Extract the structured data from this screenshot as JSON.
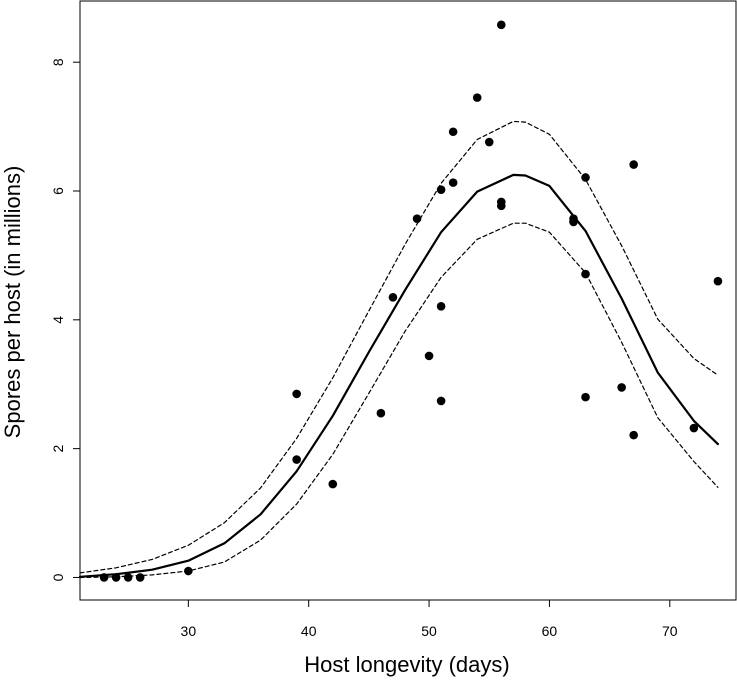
{
  "chart_data": {
    "type": "scatter",
    "title": "",
    "xlabel": "Host longevity (days)",
    "ylabel": "Spores per host (in millions)",
    "xlim": [
      21,
      75.5
    ],
    "ylim": [
      -0.35,
      8.95
    ],
    "x_ticks": [
      30,
      40,
      50,
      60,
      70
    ],
    "y_ticks": [
      0,
      2,
      4,
      6,
      8
    ],
    "x_tick_labels": [
      "30",
      "40",
      "50",
      "60",
      "70"
    ],
    "y_tick_labels": [
      "0",
      "2",
      "4",
      "6",
      "8"
    ],
    "grid": false,
    "legend": "none",
    "points": {
      "x": [
        23,
        24,
        25,
        26,
        30,
        39,
        39,
        42,
        46,
        47,
        49,
        50,
        51,
        51,
        51,
        52,
        52,
        54,
        55,
        56,
        56,
        56,
        62,
        62,
        63,
        63,
        63,
        66,
        67,
        67,
        72,
        74
      ],
      "y": [
        0,
        0,
        0,
        0,
        0.1,
        2.85,
        1.83,
        1.45,
        2.55,
        4.35,
        5.57,
        3.44,
        6.02,
        4.21,
        2.74,
        6.92,
        6.13,
        7.45,
        6.76,
        8.58,
        5.83,
        5.77,
        5.57,
        5.52,
        6.21,
        4.71,
        2.8,
        2.95,
        6.41,
        2.21,
        2.32,
        4.6
      ]
    },
    "series": [
      {
        "style": "solid",
        "x": [
          21,
          24,
          27,
          30,
          33,
          36,
          39,
          42,
          45,
          48,
          51,
          54,
          57,
          58,
          60,
          63,
          66,
          69,
          72,
          74
        ],
        "y": [
          0.01,
          0.05,
          0.12,
          0.26,
          0.53,
          0.98,
          1.65,
          2.51,
          3.5,
          4.46,
          5.36,
          5.99,
          6.25,
          6.24,
          6.08,
          5.38,
          4.33,
          3.18,
          2.43,
          2.07
        ]
      },
      {
        "style": "dashed",
        "x": [
          21,
          24,
          27,
          30,
          33,
          36,
          39,
          42,
          45,
          48,
          51,
          54,
          57,
          58,
          60,
          63,
          66,
          69,
          72,
          74
        ],
        "y": [
          0.07,
          0.15,
          0.28,
          0.5,
          0.85,
          1.39,
          2.16,
          3.1,
          4.14,
          5.17,
          6.12,
          6.8,
          7.08,
          7.07,
          6.88,
          6.18,
          5.15,
          4.01,
          3.4,
          3.14
        ]
      },
      {
        "style": "dashed",
        "x": [
          21,
          24,
          27,
          30,
          33,
          36,
          39,
          42,
          45,
          48,
          51,
          54,
          57,
          58,
          60,
          63,
          66,
          69,
          72,
          74
        ],
        "y": [
          0,
          0.01,
          0.04,
          0.1,
          0.24,
          0.58,
          1.14,
          1.91,
          2.86,
          3.82,
          4.66,
          5.25,
          5.5,
          5.5,
          5.36,
          4.73,
          3.65,
          2.48,
          1.8,
          1.4
        ]
      }
    ]
  }
}
